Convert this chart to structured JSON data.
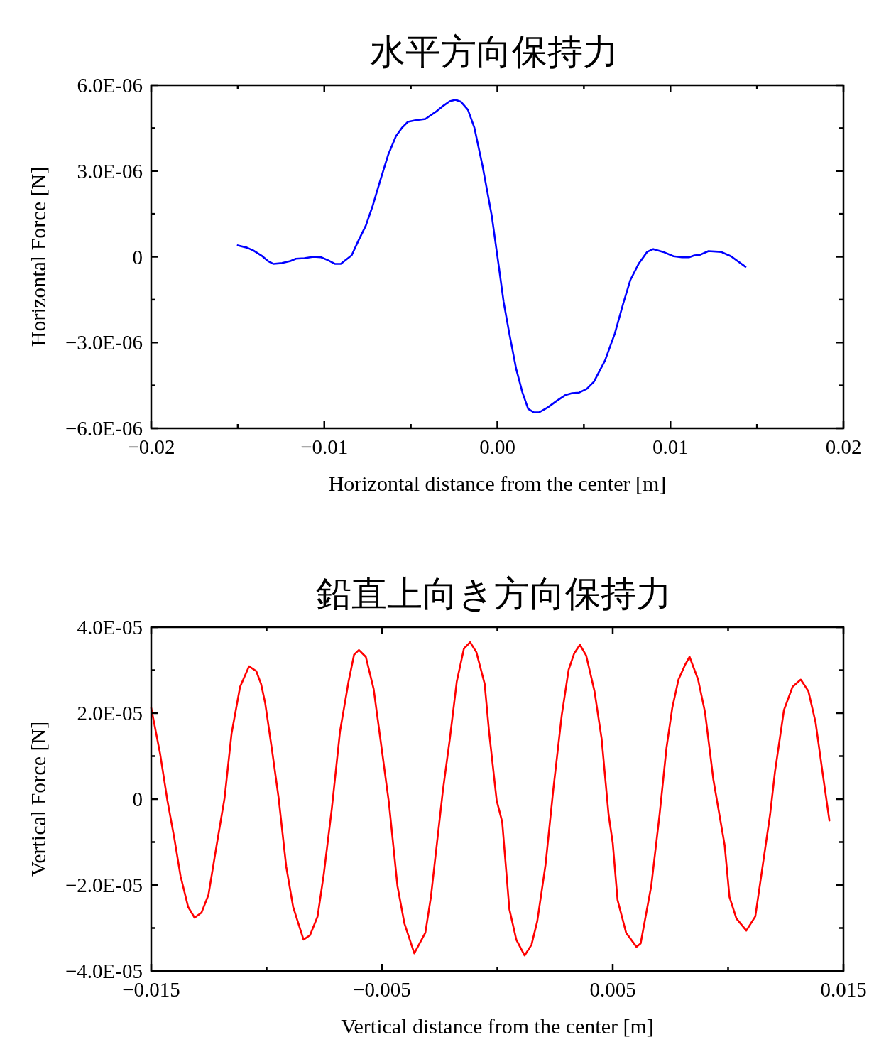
{
  "chart_data": [
    {
      "type": "line",
      "title": "水平方向保持力",
      "xlabel": "Horizontal distance from the center [m]",
      "ylabel": "Horizontal Force [N]",
      "xlim": [
        -0.02,
        0.02
      ],
      "ylim": [
        -6e-06,
        6e-06
      ],
      "xticks": [
        {
          "value": -0.02,
          "label": "−0.02"
        },
        {
          "value": -0.015,
          "label": null
        },
        {
          "value": -0.01,
          "label": "−0.01"
        },
        {
          "value": -0.005,
          "label": null
        },
        {
          "value": 0,
          "label": "0.00"
        },
        {
          "value": 0.005,
          "label": null
        },
        {
          "value": 0.01,
          "label": "0.01"
        },
        {
          "value": 0.015,
          "label": null
        },
        {
          "value": 0.02,
          "label": "0.02"
        }
      ],
      "yticks": [
        {
          "value": -6e-06,
          "label": "−6.0E-06"
        },
        {
          "value": -4.5e-06,
          "label": null
        },
        {
          "value": -3e-06,
          "label": "−3.0E-06"
        },
        {
          "value": -1.5e-06,
          "label": null
        },
        0,
        {
          "value": 1.5e-06,
          "label": null
        },
        {
          "value": 3e-06,
          "label": "3.0E-06"
        },
        {
          "value": 4.5e-06,
          "label": null
        },
        {
          "value": 6e-06,
          "label": "6.0E-06"
        }
      ],
      "x": [
        -0.015,
        -0.01447,
        -0.0141,
        -0.01358,
        -0.01325,
        -0.01293,
        -0.01244,
        -0.01196,
        -0.01164,
        -0.01115,
        -0.01063,
        -0.01018,
        -0.00978,
        -0.00937,
        -0.00905,
        -0.00842,
        -0.008,
        -0.0076,
        -0.0072,
        -0.00671,
        -0.0063,
        -0.00586,
        -0.0055,
        -0.00517,
        -0.00477,
        -0.00416,
        -0.00356,
        -0.00315,
        -0.00275,
        -0.00242,
        -0.0021,
        -0.0017,
        -0.00133,
        -0.00085,
        -0.00032,
        8e-05,
        0.00036,
        0.00069,
        0.00109,
        0.00145,
        0.00178,
        0.0021,
        0.00242,
        0.00291,
        0.00343,
        0.00392,
        0.00432,
        0.00473,
        0.00517,
        0.00558,
        0.00622,
        0.00679,
        0.00727,
        0.00768,
        0.00816,
        0.00865,
        0.00901,
        0.00958,
        0.01018,
        0.01067,
        0.01107,
        0.01139,
        0.01172,
        0.0122,
        0.01293,
        0.0135,
        0.01434
      ],
      "series": [
        {
          "color": "#0000ff",
          "values": [
            4e-07,
            3.2e-07,
            2.2e-07,
            2e-08,
            -1.5e-07,
            -2.5e-07,
            -2.2e-07,
            -1.5e-07,
            -7e-08,
            -5e-08,
            0,
            -2e-08,
            -1.2e-07,
            -2.5e-07,
            -2.5e-07,
            5e-08,
            6e-07,
            1.09e-06,
            1.79e-06,
            2.78e-06,
            3.58e-06,
            4.22e-06,
            4.52e-06,
            4.72e-06,
            4.77e-06,
            4.82e-06,
            5.07e-06,
            5.27e-06,
            5.44e-06,
            5.49e-06,
            5.42e-06,
            5.14e-06,
            4.52e-06,
            3.16e-06,
            1.42e-06,
            -3.2e-07,
            -1.57e-06,
            -2.68e-06,
            -3.93e-06,
            -4.75e-06,
            -5.32e-06,
            -5.44e-06,
            -5.44e-06,
            -5.27e-06,
            -5.04e-06,
            -4.84e-06,
            -4.77e-06,
            -4.75e-06,
            -4.62e-06,
            -4.37e-06,
            -3.63e-06,
            -2.68e-06,
            -1.64e-06,
            -8.2e-07,
            -2.5e-07,
            1.7e-07,
            2.7e-07,
            1.7e-07,
            2e-08,
            -2e-08,
            -2e-08,
            5e-08,
            7e-08,
            2e-07,
            1.7e-07,
            2e-08,
            -3.5e-07
          ]
        }
      ]
    },
    {
      "type": "line",
      "title": "鉛直上向き方向保持力",
      "xlabel": "Vertical distance from the center [m]",
      "ylabel": "Vertical Force [N]",
      "xlim": [
        -0.015,
        0.015
      ],
      "ylim": [
        -4e-05,
        4e-05
      ],
      "xticks": [
        {
          "value": -0.015,
          "label": "−0.015"
        },
        {
          "value": -0.01,
          "label": null
        },
        {
          "value": -0.005,
          "label": "−0.005"
        },
        {
          "value": 0,
          "label": null
        },
        0.005,
        {
          "value": 0.01,
          "label": null
        },
        0.015
      ],
      "yticks": [
        {
          "value": -4e-05,
          "label": "−4.0E-05"
        },
        {
          "value": -3e-05,
          "label": null
        },
        {
          "value": -2e-05,
          "label": "−2.0E-05"
        },
        {
          "value": -1e-05,
          "label": null
        },
        0,
        {
          "value": 1e-05,
          "label": null
        },
        {
          "value": 2e-05,
          "label": "2.0E-05"
        },
        {
          "value": 3e-05,
          "label": null
        },
        {
          "value": 4e-05,
          "label": "4.0E-05"
        }
      ],
      "x": [
        -0.015,
        -0.01461,
        -0.0143,
        -0.014,
        -0.01373,
        -0.0134,
        -0.01312,
        -0.01282,
        -0.01252,
        -0.01218,
        -0.01182,
        -0.01152,
        -0.01115,
        -0.01076,
        -0.01045,
        -0.01024,
        -0.01006,
        -0.00976,
        -0.00948,
        -0.00915,
        -0.00885,
        -0.0084,
        -0.00812,
        -0.00779,
        -0.00752,
        -0.00718,
        -0.00682,
        -0.00645,
        -0.00621,
        -0.006,
        -0.0057,
        -0.00536,
        -0.005,
        -0.0047,
        -0.00433,
        -0.00403,
        -0.0036,
        -0.00312,
        -0.00288,
        -0.00236,
        -0.00206,
        -0.00176,
        -0.00145,
        -0.00118,
        -0.00091,
        -0.00055,
        -0.00036,
        -3e-05,
        0.00021,
        0.00052,
        0.00082,
        0.00118,
        0.00148,
        0.00173,
        0.00209,
        0.00242,
        0.00279,
        0.00309,
        0.00333,
        0.00358,
        0.00385,
        0.00421,
        0.00452,
        0.00482,
        0.005,
        0.00521,
        0.00558,
        0.00603,
        0.00621,
        0.00667,
        0.00703,
        0.00733,
        0.00758,
        0.00785,
        0.00815,
        0.00833,
        0.0087,
        0.009,
        0.00936,
        0.00985,
        0.01006,
        0.01036,
        0.01079,
        0.01118,
        0.01148,
        0.01182,
        0.01203,
        0.01242,
        0.01279,
        0.01315,
        0.01348,
        0.01379,
        0.01409,
        0.01439
      ],
      "series": [
        {
          "color": "#ff0000",
          "values": [
            2.12e-05,
            1.04e-05,
            -3e-07,
            -9.1e-06,
            -1.79e-05,
            -2.51e-05,
            -2.76e-05,
            -2.64e-05,
            -2.23e-05,
            -1.12e-05,
            3e-07,
            1.52e-05,
            2.61e-05,
            3.09e-05,
            2.98e-05,
            2.68e-05,
            2.23e-05,
            1.12e-05,
            3e-07,
            -1.57e-05,
            -2.51e-05,
            -3.27e-05,
            -3.17e-05,
            -2.73e-05,
            -1.74e-05,
            -2.5e-06,
            1.57e-05,
            2.73e-05,
            3.36e-05,
            3.47e-05,
            3.31e-05,
            2.56e-05,
            1.12e-05,
            -8e-07,
            -2.02e-05,
            -2.89e-05,
            -3.59e-05,
            -3.11e-05,
            -2.28e-05,
            2e-06,
            1.4e-05,
            2.73e-05,
            3.5e-05,
            3.65e-05,
            3.42e-05,
            2.68e-05,
            1.57e-05,
            -3e-07,
            -5.3e-06,
            -2.56e-05,
            -3.27e-05,
            -3.64e-05,
            -3.39e-05,
            -2.84e-05,
            -1.52e-05,
            2e-06,
            1.95e-05,
            3.01e-05,
            3.39e-05,
            3.59e-05,
            3.34e-05,
            2.51e-05,
            1.4e-05,
            -3.6e-06,
            -1.02e-05,
            -2.35e-05,
            -3.11e-05,
            -3.44e-05,
            -3.36e-05,
            -2.02e-05,
            -3.6e-06,
            1.19e-05,
            2.12e-05,
            2.78e-05,
            3.14e-05,
            3.31e-05,
            2.78e-05,
            2.02e-05,
            4.6e-06,
            -1.07e-05,
            -2.28e-05,
            -2.78e-05,
            -3.06e-05,
            -2.73e-05,
            -1.62e-05,
            -3.6e-06,
            6.3e-06,
            2.07e-05,
            2.61e-05,
            2.78e-05,
            2.51e-05,
            1.79e-05,
            6.3e-06,
            -5e-06
          ]
        }
      ]
    }
  ]
}
